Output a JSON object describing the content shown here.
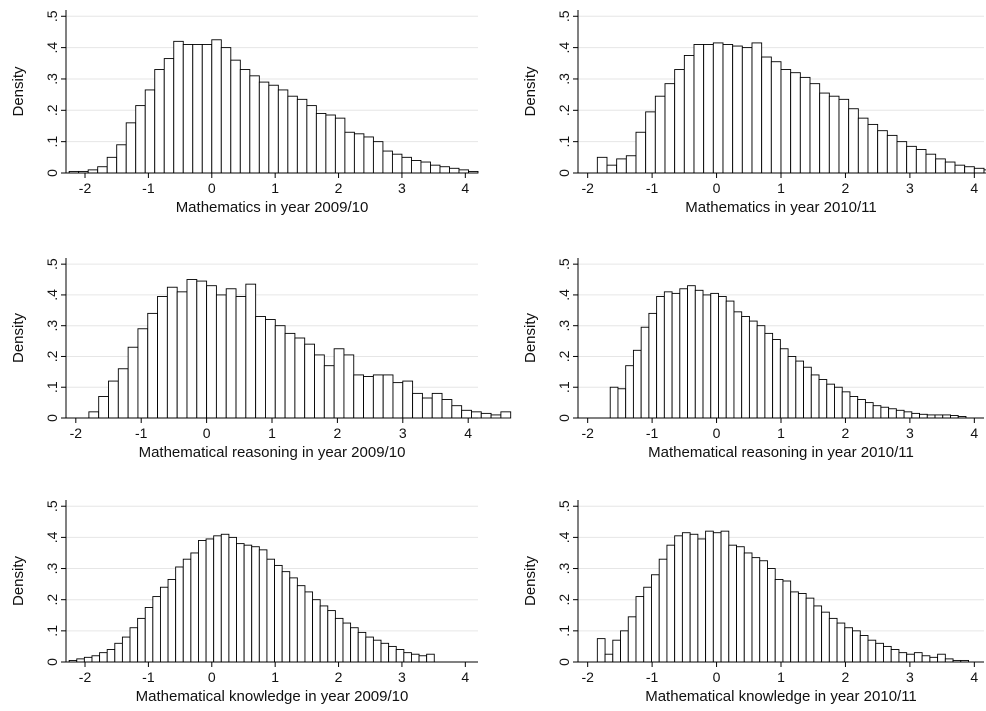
{
  "chart_data": [
    {
      "type": "bar",
      "xlabel": "Mathematics in year 2009/10",
      "ylabel": "Density",
      "xlim": [
        -2.3,
        4.2
      ],
      "ylim": [
        0,
        0.52
      ],
      "xticks": [
        -2,
        -1,
        0,
        1,
        2,
        3,
        4
      ],
      "yticks": [
        0,
        0.1,
        0.2,
        0.3,
        0.4,
        0.5
      ],
      "ytick_labels": [
        "0",
        ".1",
        ".2",
        ".3",
        ".4",
        ".5"
      ],
      "grid": true,
      "bins_start": -2.25,
      "bin_width": 0.15,
      "values": [
        0.005,
        0.005,
        0.01,
        0.02,
        0.05,
        0.09,
        0.16,
        0.215,
        0.265,
        0.33,
        0.365,
        0.42,
        0.41,
        0.41,
        0.41,
        0.425,
        0.4,
        0.36,
        0.33,
        0.31,
        0.29,
        0.28,
        0.265,
        0.245,
        0.235,
        0.215,
        0.19,
        0.185,
        0.175,
        0.13,
        0.125,
        0.115,
        0.1,
        0.07,
        0.06,
        0.05,
        0.04,
        0.035,
        0.025,
        0.02,
        0.015,
        0.01,
        0.005
      ]
    },
    {
      "type": "bar",
      "xlabel": "Mathematics in year 2010/11",
      "ylabel": "Density",
      "xlim": [
        -2.15,
        4.15
      ],
      "ylim": [
        0,
        0.52
      ],
      "xticks": [
        -2,
        -1,
        0,
        1,
        2,
        3,
        4
      ],
      "yticks": [
        0,
        0.1,
        0.2,
        0.3,
        0.4,
        0.5
      ],
      "ytick_labels": [
        "0",
        ".1",
        ".2",
        ".3",
        ".4",
        ".5"
      ],
      "grid": true,
      "bins_start": -1.85,
      "bin_width": 0.15,
      "values": [
        0.05,
        0.025,
        0.045,
        0.055,
        0.13,
        0.195,
        0.245,
        0.285,
        0.33,
        0.375,
        0.41,
        0.41,
        0.415,
        0.41,
        0.405,
        0.4,
        0.415,
        0.37,
        0.355,
        0.33,
        0.32,
        0.305,
        0.285,
        0.255,
        0.245,
        0.235,
        0.205,
        0.175,
        0.155,
        0.135,
        0.12,
        0.1,
        0.085,
        0.075,
        0.06,
        0.045,
        0.035,
        0.025,
        0.02,
        0.015,
        0.01,
        0.008,
        0.005,
        0.003
      ]
    },
    {
      "type": "bar",
      "xlabel": "Mathematical reasoning in year 2009/10",
      "ylabel": "Density",
      "xlim": [
        -2.15,
        4.15
      ],
      "ylim": [
        0,
        0.52
      ],
      "xticks": [
        -2,
        -1,
        0,
        1,
        2,
        3,
        4
      ],
      "yticks": [
        0,
        0.1,
        0.2,
        0.3,
        0.4,
        0.5
      ],
      "ytick_labels": [
        "0",
        ".1",
        ".2",
        ".3",
        ".4",
        ".5"
      ],
      "grid": true,
      "bins_start": -1.8,
      "bin_width": 0.15,
      "values": [
        0.02,
        0.07,
        0.12,
        0.16,
        0.23,
        0.29,
        0.34,
        0.395,
        0.425,
        0.41,
        0.45,
        0.445,
        0.43,
        0.4,
        0.42,
        0.395,
        0.435,
        0.33,
        0.32,
        0.3,
        0.275,
        0.26,
        0.24,
        0.205,
        0.17,
        0.225,
        0.205,
        0.14,
        0.135,
        0.14,
        0.14,
        0.115,
        0.12,
        0.08,
        0.065,
        0.08,
        0.06,
        0.04,
        0.025,
        0.02,
        0.015,
        0.01,
        0.02
      ]
    },
    {
      "type": "bar",
      "xlabel": "Mathematical reasoning in year 2010/11",
      "ylabel": "Density",
      "xlim": [
        -2.15,
        4.15
      ],
      "ylim": [
        0,
        0.52
      ],
      "xticks": [
        -2,
        -1,
        0,
        1,
        2,
        3,
        4
      ],
      "yticks": [
        0,
        0.1,
        0.2,
        0.3,
        0.4,
        0.5
      ],
      "ytick_labels": [
        "0",
        ".1",
        ".2",
        ".3",
        ".4",
        ".5"
      ],
      "grid": true,
      "bins_start": -1.65,
      "bin_width": 0.12,
      "values": [
        0.1,
        0.095,
        0.17,
        0.22,
        0.295,
        0.34,
        0.395,
        0.41,
        0.405,
        0.42,
        0.43,
        0.415,
        0.4,
        0.405,
        0.395,
        0.38,
        0.345,
        0.33,
        0.315,
        0.3,
        0.275,
        0.255,
        0.225,
        0.2,
        0.185,
        0.165,
        0.14,
        0.125,
        0.11,
        0.1,
        0.085,
        0.07,
        0.06,
        0.05,
        0.04,
        0.035,
        0.03,
        0.025,
        0.02,
        0.015,
        0.012,
        0.01,
        0.01,
        0.01,
        0.008,
        0.005
      ]
    },
    {
      "type": "bar",
      "xlabel": "Mathematical knowledge in year 2009/10",
      "ylabel": "Density",
      "xlim": [
        -2.3,
        4.2
      ],
      "ylim": [
        0,
        0.52
      ],
      "xticks": [
        -2,
        -1,
        0,
        1,
        2,
        3,
        4
      ],
      "yticks": [
        0,
        0.1,
        0.2,
        0.3,
        0.4,
        0.5
      ],
      "ytick_labels": [
        "0",
        ".1",
        ".2",
        ".3",
        ".4",
        ".5"
      ],
      "grid": true,
      "bins_start": -2.25,
      "bin_width": 0.12,
      "values": [
        0.005,
        0.01,
        0.015,
        0.02,
        0.03,
        0.04,
        0.06,
        0.08,
        0.11,
        0.14,
        0.175,
        0.21,
        0.24,
        0.265,
        0.305,
        0.33,
        0.35,
        0.39,
        0.395,
        0.405,
        0.41,
        0.4,
        0.38,
        0.375,
        0.37,
        0.36,
        0.33,
        0.31,
        0.29,
        0.27,
        0.245,
        0.225,
        0.2,
        0.18,
        0.165,
        0.14,
        0.125,
        0.11,
        0.095,
        0.08,
        0.07,
        0.06,
        0.05,
        0.04,
        0.03,
        0.025,
        0.02,
        0.025
      ]
    },
    {
      "type": "bar",
      "xlabel": "Mathematical knowledge in year 2010/11",
      "ylabel": "Density",
      "xlim": [
        -2.15,
        4.15
      ],
      "ylim": [
        0,
        0.52
      ],
      "xticks": [
        -2,
        -1,
        0,
        1,
        2,
        3,
        4
      ],
      "yticks": [
        0,
        0.1,
        0.2,
        0.3,
        0.4,
        0.5
      ],
      "ytick_labels": [
        "0",
        ".1",
        ".2",
        ".3",
        ".4",
        ".5"
      ],
      "grid": true,
      "bins_start": -1.85,
      "bin_width": 0.12,
      "values": [
        0.075,
        0.025,
        0.07,
        0.1,
        0.145,
        0.21,
        0.24,
        0.28,
        0.33,
        0.375,
        0.405,
        0.415,
        0.41,
        0.395,
        0.42,
        0.415,
        0.42,
        0.375,
        0.37,
        0.35,
        0.335,
        0.325,
        0.3,
        0.265,
        0.26,
        0.225,
        0.22,
        0.205,
        0.18,
        0.16,
        0.14,
        0.125,
        0.11,
        0.1,
        0.085,
        0.07,
        0.06,
        0.05,
        0.04,
        0.03,
        0.025,
        0.03,
        0.02,
        0.015,
        0.025,
        0.01,
        0.005,
        0.005
      ]
    }
  ]
}
